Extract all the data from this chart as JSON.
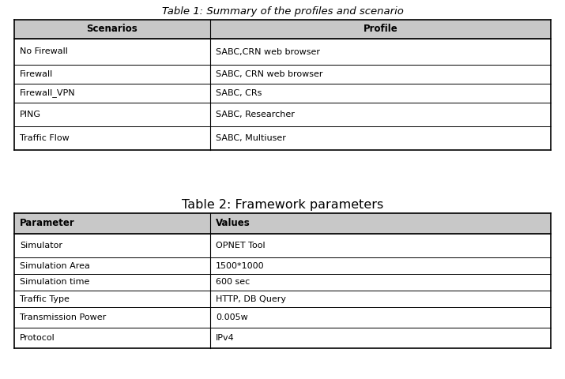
{
  "table1_title": "Table 1: Summary of the profiles and scenario",
  "table1_headers": [
    "Scenarios",
    "Profile"
  ],
  "table1_rows": [
    [
      "No Firewall",
      "SABC,CRN web browser"
    ],
    [
      "Firewall",
      "SABC, CRN web browser"
    ],
    [
      "Firewall_VPN",
      "SABC, CRs"
    ],
    [
      "PING",
      "SABC, Researcher"
    ],
    [
      "Traffic Flow",
      "SABC, Multiuser"
    ]
  ],
  "table2_title": "Table 2: Framework parameters",
  "table2_headers": [
    "Parameter",
    "Values"
  ],
  "table2_rows": [
    [
      "Simulator",
      "OPNET Tool"
    ],
    [
      "Simulation Area",
      "1500*1000"
    ],
    [
      "Simulation time",
      "600 sec"
    ],
    [
      "Traffic Type",
      "HTTP, DB Query"
    ],
    [
      "Transmission Power",
      "0.005w"
    ],
    [
      "Protocol",
      "IPv4"
    ]
  ],
  "bg_color": "#ffffff",
  "border_color": "#000000",
  "header_bg": "#c8c8c8",
  "text_color": "#000000",
  "title1_fontsize": 9.5,
  "title2_fontsize": 11.5,
  "header_fontsize": 8.5,
  "cell_fontsize": 8.0,
  "col_split": 0.365
}
